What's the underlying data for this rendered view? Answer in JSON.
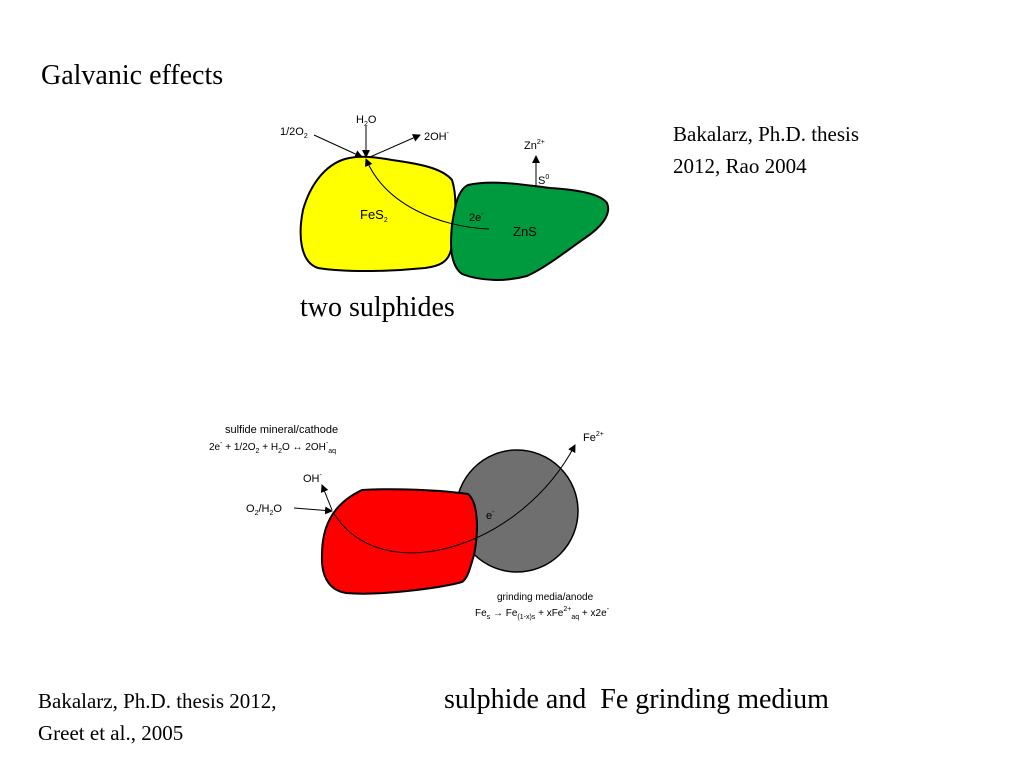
{
  "slide": {
    "title": "Galvanic effects",
    "caption_top": "two sulphides",
    "caption_bottom": "sulphide and  Fe grinding medium",
    "ref_top_line1": "Bakalarz, Ph.D. thesis",
    "ref_top_line2": "2012, Rao 2004",
    "ref_bottom_line1": "Bakalarz, Ph.D. thesis 2012,",
    "ref_bottom_line2": "Greet et al., 2005"
  },
  "diagram1": {
    "h2o_base": "H",
    "h2o_sub": "2",
    "h2o_tail": "O",
    "o2_base": "1/2O",
    "o2_sub": "2",
    "oh_base": "2OH",
    "oh_sup": "-",
    "zn_base": "Zn",
    "zn_sup": "2+",
    "s_base": "S",
    "s_sup": "0",
    "e_base": "2e",
    "e_sup": "-",
    "fes2_base": "FeS",
    "fes2_sub": "2",
    "zns": "ZnS",
    "colors": {
      "pyrite": "#ffff00",
      "sphalerite": "#009a3e"
    }
  },
  "diagram2": {
    "cathode_title": "sulfide mineral/cathode",
    "eq_p1": "2e",
    "eq_p1_sup": "-",
    "eq_p2": " + 1/2O",
    "eq_p2_sub": "2",
    "eq_p3": " + H",
    "eq_p3_sub": "2",
    "eq_p4": "O ↔ 2OH",
    "eq_p4_sup": "-",
    "eq_p4_sub": "aq",
    "oh_base": "OH",
    "oh_sup": "-",
    "o2h2o_p1": "O",
    "o2h2o_p1_sub": "2",
    "o2h2o_p2": "/H",
    "o2h2o_p2_sub": "2",
    "o2h2o_p3": "O",
    "e_base": "e",
    "e_sup": "-",
    "fe_base": "Fe",
    "fe_sup": "2+",
    "anode_title": "grinding media/anode",
    "an_p1": "Fe",
    "an_p1_sub": "s",
    "an_p2": " → Fe",
    "an_p2_sub": "(1-x)s",
    "an_p3": " + xFe",
    "an_p3_sup": "2+",
    "an_p3_sub": "aq",
    "an_p4": " + x2e",
    "an_p4_sup": "-",
    "colors": {
      "sulfide": "#ff0000",
      "steel": "#6f6f6f"
    }
  }
}
